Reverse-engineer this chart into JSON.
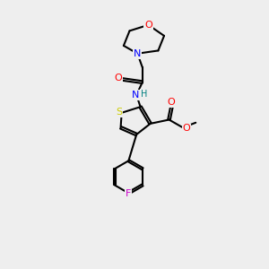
{
  "background_color": "#eeeeee",
  "bond_color": "#000000",
  "atom_colors": {
    "O": "#ff0000",
    "N": "#0000ff",
    "S": "#cccc00",
    "F": "#cc00cc",
    "C": "#000000",
    "H": "#008080"
  },
  "figsize": [
    3.0,
    3.0
  ],
  "dpi": 100
}
